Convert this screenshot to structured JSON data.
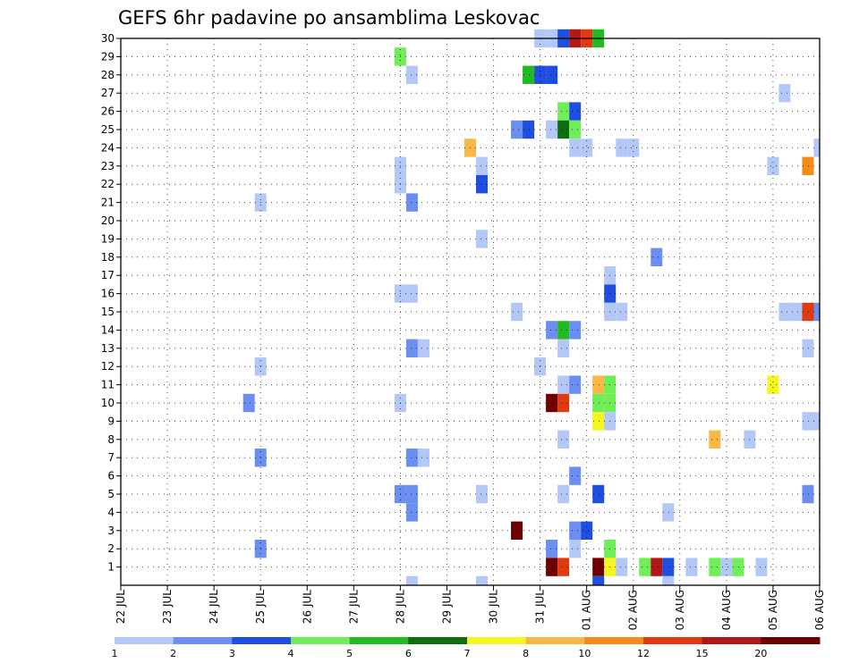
{
  "chart_data": {
    "type": "heatmap",
    "title": "GEFS 6hr padavine po ansamblima Leskovac",
    "xlabel": "",
    "ylabel": "",
    "x_ticks": [
      "22 JUL",
      "23 JUL",
      "24 JUL",
      "25 JUL",
      "26 JUL",
      "27 JUL",
      "28 JUL",
      "29 JUL",
      "30 JUL",
      "31 JUL",
      "01 AUG",
      "02 AUG",
      "03 AUG",
      "04 AUG",
      "05 AUG",
      "06 AUG"
    ],
    "x_range": [
      "22 JUL 00Z",
      "06 AUG 00Z"
    ],
    "x_step_hours": 6,
    "y_ticks": [
      1,
      2,
      3,
      4,
      5,
      6,
      7,
      8,
      9,
      10,
      11,
      12,
      13,
      14,
      15,
      16,
      17,
      18,
      19,
      20,
      21,
      22,
      23,
      24,
      25,
      26,
      27,
      28,
      29,
      30
    ],
    "y_range": [
      0,
      30
    ],
    "grid": true,
    "colorbar": {
      "labels": [
        "1",
        "2",
        "3",
        "4",
        "5",
        "6",
        "7",
        "8",
        "10",
        "12",
        "15",
        "20"
      ],
      "colors": [
        "#b4c8f8",
        "#6a8ff0",
        "#1f4fe0",
        "#70ee58",
        "#20bb20",
        "#0c6e0c",
        "#f5f520",
        "#f8b848",
        "#f38b18",
        "#e03a10",
        "#b01818",
        "#6e0000"
      ]
    },
    "cells": [
      {
        "day": "31 JUL",
        "hour": 0,
        "member": 30,
        "level": 1
      },
      {
        "day": "31 JUL",
        "hour": 6,
        "member": 30,
        "level": 1
      },
      {
        "day": "31 JUL",
        "hour": 12,
        "member": 30,
        "level": 3
      },
      {
        "day": "31 JUL",
        "hour": 18,
        "member": 30,
        "level": 11
      },
      {
        "day": "01 AUG",
        "hour": 0,
        "member": 30,
        "level": 10
      },
      {
        "day": "01 AUG",
        "hour": 6,
        "member": 30,
        "level": 5
      },
      {
        "day": "28 JUL",
        "hour": 0,
        "member": 29,
        "level": 4
      },
      {
        "day": "28 JUL",
        "hour": 6,
        "member": 28,
        "level": 1
      },
      {
        "day": "30 JUL",
        "hour": 18,
        "member": 28,
        "level": 5
      },
      {
        "day": "31 JUL",
        "hour": 0,
        "member": 28,
        "level": 3
      },
      {
        "day": "31 JUL",
        "hour": 6,
        "member": 28,
        "level": 3
      },
      {
        "day": "05 AUG",
        "hour": 6,
        "member": 27,
        "level": 1
      },
      {
        "day": "31 JUL",
        "hour": 12,
        "member": 26,
        "level": 4
      },
      {
        "day": "31 JUL",
        "hour": 18,
        "member": 26,
        "level": 3
      },
      {
        "day": "30 JUL",
        "hour": 12,
        "member": 25,
        "level": 2
      },
      {
        "day": "30 JUL",
        "hour": 18,
        "member": 25,
        "level": 3
      },
      {
        "day": "31 JUL",
        "hour": 6,
        "member": 25,
        "level": 1
      },
      {
        "day": "31 JUL",
        "hour": 12,
        "member": 25,
        "level": 6
      },
      {
        "day": "31 JUL",
        "hour": 18,
        "member": 25,
        "level": 4
      },
      {
        "day": "29 JUL",
        "hour": 12,
        "member": 24,
        "level": 8
      },
      {
        "day": "31 JUL",
        "hour": 18,
        "member": 24,
        "level": 1
      },
      {
        "day": "01 AUG",
        "hour": 0,
        "member": 24,
        "level": 1
      },
      {
        "day": "01 AUG",
        "hour": 18,
        "member": 24,
        "level": 1
      },
      {
        "day": "02 AUG",
        "hour": 0,
        "member": 24,
        "level": 1
      },
      {
        "day": "06 AUG",
        "hour": 0,
        "member": 24,
        "level": 1
      },
      {
        "day": "28 JUL",
        "hour": 0,
        "member": 23,
        "level": 1
      },
      {
        "day": "29 JUL",
        "hour": 18,
        "member": 23,
        "level": 1
      },
      {
        "day": "05 AUG",
        "hour": 0,
        "member": 23,
        "level": 1
      },
      {
        "day": "05 AUG",
        "hour": 18,
        "member": 23,
        "level": 9
      },
      {
        "day": "28 JUL",
        "hour": 0,
        "member": 22,
        "level": 1
      },
      {
        "day": "29 JUL",
        "hour": 18,
        "member": 22,
        "level": 3
      },
      {
        "day": "25 JUL",
        "hour": 0,
        "member": 21,
        "level": 1
      },
      {
        "day": "28 JUL",
        "hour": 6,
        "member": 21,
        "level": 2
      },
      {
        "day": "29 JUL",
        "hour": 18,
        "member": 19,
        "level": 1
      },
      {
        "day": "02 AUG",
        "hour": 12,
        "member": 18,
        "level": 2
      },
      {
        "day": "01 AUG",
        "hour": 12,
        "member": 17,
        "level": 1
      },
      {
        "day": "28 JUL",
        "hour": 0,
        "member": 16,
        "level": 1
      },
      {
        "day": "28 JUL",
        "hour": 6,
        "member": 16,
        "level": 1
      },
      {
        "day": "01 AUG",
        "hour": 12,
        "member": 16,
        "level": 3
      },
      {
        "day": "05 AUG",
        "hour": 6,
        "member": 15,
        "level": 1
      },
      {
        "day": "05 AUG",
        "hour": 12,
        "member": 15,
        "level": 1
      },
      {
        "day": "05 AUG",
        "hour": 18,
        "member": 15,
        "level": 10
      },
      {
        "day": "06 AUG",
        "hour": 0,
        "member": 15,
        "level": 2
      },
      {
        "day": "30 JUL",
        "hour": 12,
        "member": 15,
        "level": 1
      },
      {
        "day": "01 AUG",
        "hour": 12,
        "member": 15,
        "level": 1
      },
      {
        "day": "01 AUG",
        "hour": 18,
        "member": 15,
        "level": 1
      },
      {
        "day": "31 JUL",
        "hour": 6,
        "member": 14,
        "level": 2
      },
      {
        "day": "31 JUL",
        "hour": 12,
        "member": 14,
        "level": 5
      },
      {
        "day": "31 JUL",
        "hour": 18,
        "member": 14,
        "level": 2
      },
      {
        "day": "28 JUL",
        "hour": 6,
        "member": 13,
        "level": 2
      },
      {
        "day": "28 JUL",
        "hour": 12,
        "member": 13,
        "level": 1
      },
      {
        "day": "31 JUL",
        "hour": 12,
        "member": 13,
        "level": 1
      },
      {
        "day": "05 AUG",
        "hour": 18,
        "member": 13,
        "level": 1
      },
      {
        "day": "25 JUL",
        "hour": 0,
        "member": 12,
        "level": 1
      },
      {
        "day": "31 JUL",
        "hour": 0,
        "member": 12,
        "level": 1
      },
      {
        "day": "31 JUL",
        "hour": 12,
        "member": 11,
        "level": 1
      },
      {
        "day": "31 JUL",
        "hour": 18,
        "member": 11,
        "level": 2
      },
      {
        "day": "01 AUG",
        "hour": 6,
        "member": 11,
        "level": 8
      },
      {
        "day": "01 AUG",
        "hour": 12,
        "member": 11,
        "level": 4
      },
      {
        "day": "05 AUG",
        "hour": 0,
        "member": 11,
        "level": 7
      },
      {
        "day": "24 JUL",
        "hour": 18,
        "member": 10,
        "level": 2
      },
      {
        "day": "28 JUL",
        "hour": 0,
        "member": 10,
        "level": 1
      },
      {
        "day": "31 JUL",
        "hour": 6,
        "member": 10,
        "level": 12
      },
      {
        "day": "31 JUL",
        "hour": 12,
        "member": 10,
        "level": 10
      },
      {
        "day": "01 AUG",
        "hour": 6,
        "member": 10,
        "level": 4
      },
      {
        "day": "01 AUG",
        "hour": 12,
        "member": 10,
        "level": 4
      },
      {
        "day": "01 AUG",
        "hour": 6,
        "member": 9,
        "level": 7
      },
      {
        "day": "01 AUG",
        "hour": 12,
        "member": 9,
        "level": 1
      },
      {
        "day": "05 AUG",
        "hour": 18,
        "member": 9,
        "level": 1
      },
      {
        "day": "06 AUG",
        "hour": 0,
        "member": 9,
        "level": 1
      },
      {
        "day": "31 JUL",
        "hour": 12,
        "member": 8,
        "level": 1
      },
      {
        "day": "03 AUG",
        "hour": 18,
        "member": 8,
        "level": 8
      },
      {
        "day": "04 AUG",
        "hour": 12,
        "member": 8,
        "level": 1
      },
      {
        "day": "25 JUL",
        "hour": 0,
        "member": 7,
        "level": 2
      },
      {
        "day": "28 JUL",
        "hour": 6,
        "member": 7,
        "level": 2
      },
      {
        "day": "28 JUL",
        "hour": 12,
        "member": 7,
        "level": 1
      },
      {
        "day": "31 JUL",
        "hour": 18,
        "member": 6,
        "level": 2
      },
      {
        "day": "28 JUL",
        "hour": 0,
        "member": 5,
        "level": 2
      },
      {
        "day": "28 JUL",
        "hour": 6,
        "member": 5,
        "level": 2
      },
      {
        "day": "29 JUL",
        "hour": 18,
        "member": 5,
        "level": 1
      },
      {
        "day": "31 JUL",
        "hour": 12,
        "member": 5,
        "level": 1
      },
      {
        "day": "01 AUG",
        "hour": 6,
        "member": 5,
        "level": 3
      },
      {
        "day": "05 AUG",
        "hour": 18,
        "member": 5,
        "level": 2
      },
      {
        "day": "28 JUL",
        "hour": 6,
        "member": 4,
        "level": 2
      },
      {
        "day": "02 AUG",
        "hour": 18,
        "member": 4,
        "level": 1
      },
      {
        "day": "30 JUL",
        "hour": 12,
        "member": 3,
        "level": 12
      },
      {
        "day": "31 JUL",
        "hour": 18,
        "member": 3,
        "level": 2
      },
      {
        "day": "01 AUG",
        "hour": 0,
        "member": 3,
        "level": 3
      },
      {
        "day": "25 JUL",
        "hour": 0,
        "member": 2,
        "level": 2
      },
      {
        "day": "31 JUL",
        "hour": 6,
        "member": 2,
        "level": 2
      },
      {
        "day": "31 JUL",
        "hour": 18,
        "member": 2,
        "level": 1
      },
      {
        "day": "01 AUG",
        "hour": 12,
        "member": 2,
        "level": 4
      },
      {
        "day": "31 JUL",
        "hour": 6,
        "member": 1,
        "level": 12
      },
      {
        "day": "31 JUL",
        "hour": 12,
        "member": 1,
        "level": 10
      },
      {
        "day": "01 AUG",
        "hour": 6,
        "member": 1,
        "level": 12
      },
      {
        "day": "01 AUG",
        "hour": 12,
        "member": 1,
        "level": 7
      },
      {
        "day": "01 AUG",
        "hour": 18,
        "member": 1,
        "level": 1
      },
      {
        "day": "02 AUG",
        "hour": 6,
        "member": 1,
        "level": 4
      },
      {
        "day": "02 AUG",
        "hour": 12,
        "member": 1,
        "level": 11
      },
      {
        "day": "02 AUG",
        "hour": 18,
        "member": 1,
        "level": 3
      },
      {
        "day": "03 AUG",
        "hour": 6,
        "member": 1,
        "level": 1
      },
      {
        "day": "03 AUG",
        "hour": 18,
        "member": 1,
        "level": 4
      },
      {
        "day": "04 AUG",
        "hour": 0,
        "member": 1,
        "level": 1
      },
      {
        "day": "04 AUG",
        "hour": 6,
        "member": 1,
        "level": 4
      },
      {
        "day": "04 AUG",
        "hour": 18,
        "member": 1,
        "level": 1
      },
      {
        "day": "28 JUL",
        "hour": 6,
        "member": 0,
        "level": 1
      },
      {
        "day": "29 JUL",
        "hour": 18,
        "member": 0,
        "level": 1
      },
      {
        "day": "01 AUG",
        "hour": 6,
        "member": 0,
        "level": 3
      },
      {
        "day": "02 AUG",
        "hour": 18,
        "member": 0,
        "level": 1
      }
    ]
  }
}
